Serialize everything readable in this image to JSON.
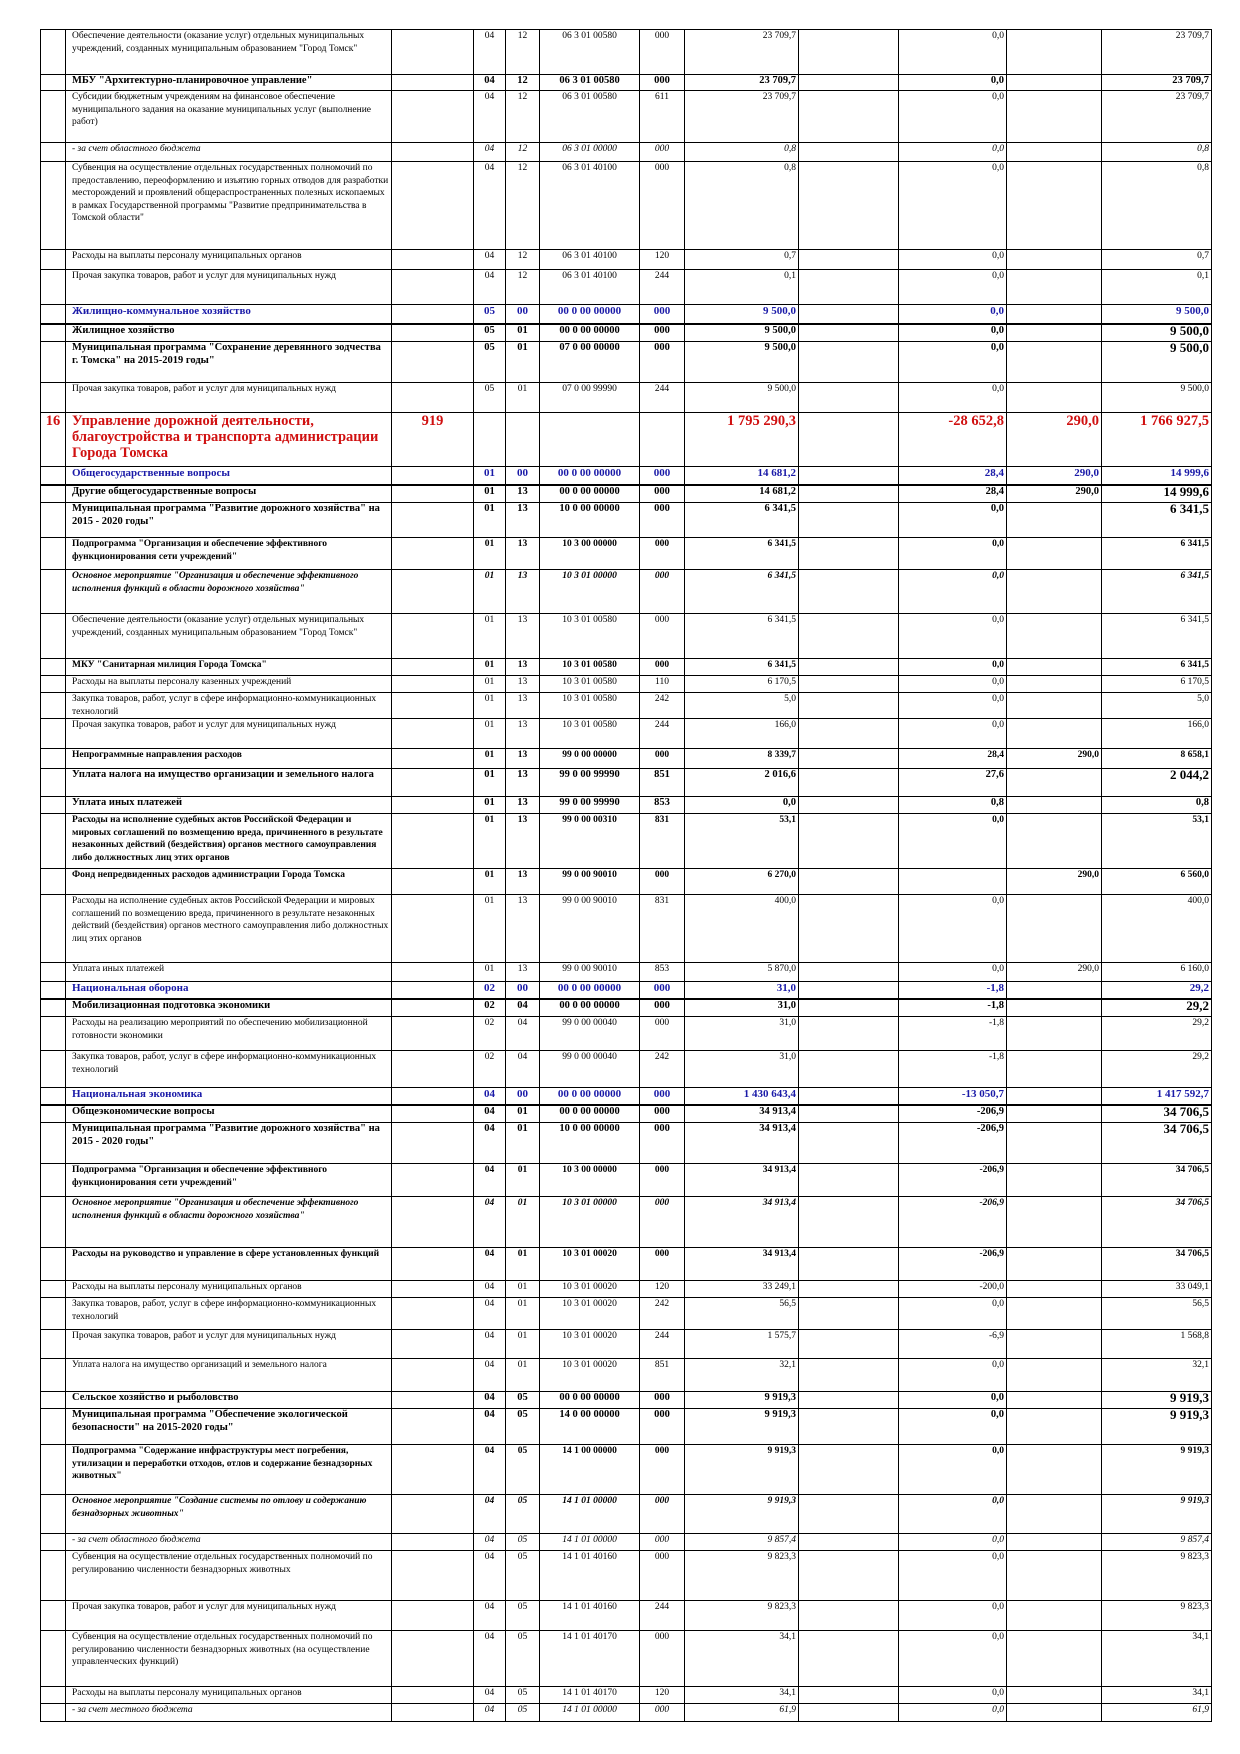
{
  "table": {
    "rows": [
      {
        "style": "normal",
        "cells": [
          null,
          "Обеспечение деятельности (оказание услуг) отдельных муниципальных учреждений, созданных муниципальным образованием \"Город Томск\"",
          null,
          "04",
          "12",
          "06 3 01 00580",
          "000",
          "23 709,7",
          "0,0",
          null,
          "23 709,7"
        ]
      },
      {
        "style": "bold",
        "cells": [
          null,
          "МБУ \"Архитектурно-планировочное управление\"",
          null,
          "04",
          "12",
          "06 3 01 00580",
          "000",
          "23 709,7",
          "0,0",
          null,
          "23 709,7"
        ]
      },
      {
        "style": "normal",
        "cells": [
          null,
          "Субсидии бюджетным учреждениям на финансовое обеспечение муниципального задания на оказание муниципальных услуг (выполнение работ)",
          null,
          "04",
          "12",
          "06 3 01 00580",
          "611",
          "23 709,7",
          "0,0",
          null,
          "23 709,7"
        ]
      },
      {
        "style": "italic",
        "cells": [
          null,
          "- за счет областного бюджета",
          null,
          "04",
          "12",
          "06 3 01 00000",
          "000",
          "0,8",
          "0,0",
          null,
          "0,8"
        ]
      },
      {
        "style": "normal",
        "cells": [
          null,
          "Субвенция на осуществление отдельных государственных полномочий по предоставлению, переоформлению и изъятию горных отводов для разработки месторождений и проявлений общераспространенных полезных ископаемых в рамках Государственной программы \"Развитие предпринимательства в Томской области\"",
          null,
          "04",
          "12",
          "06 3 01 40100",
          "000",
          "0,8",
          "0,0",
          null,
          "0,8"
        ]
      },
      {
        "style": "normal",
        "cells": [
          null,
          "Расходы на выплаты персоналу муниципальных органов",
          null,
          "04",
          "12",
          "06 3 01 40100",
          "120",
          "0,7",
          "0,0",
          null,
          "0,7"
        ]
      },
      {
        "style": "normal",
        "cells": [
          null,
          "Прочая закупка товаров, работ и услуг для муниципальных нужд",
          null,
          "04",
          "12",
          "06 3 01 40100",
          "244",
          "0,1",
          "0,0",
          null,
          "0,1"
        ]
      },
      {
        "style": "blue",
        "cells": [
          null,
          "Жилищно-коммунальное хозяйство",
          null,
          "05",
          "00",
          "00 0 00 00000",
          "000",
          "9 500,0",
          "0,0",
          null,
          "9 500,0"
        ]
      },
      {
        "style": "bold",
        "big_final": true,
        "cells": [
          null,
          "Жилищное хозяйство",
          null,
          "05",
          "01",
          "00 0 00 00000",
          "000",
          "9 500,0",
          "0,0",
          null,
          "9 500,0"
        ]
      },
      {
        "style": "bold",
        "big_final": true,
        "cells": [
          null,
          "Муниципальная программа \"Сохранение деревянного зодчества г. Томска\" на 2015-2019 годы\"",
          null,
          "05",
          "01",
          "07 0 00 00000",
          "000",
          "9 500,0",
          "0,0",
          null,
          "9 500,0"
        ]
      },
      {
        "style": "normal",
        "cells": [
          null,
          "Прочая закупка товаров, работ и услуг для муниципальных нужд",
          null,
          "05",
          "01",
          "07 0 00 99990",
          "244",
          "9 500,0",
          "0,0",
          null,
          "9 500,0"
        ]
      },
      {
        "style": "red",
        "cells": [
          "16",
          "Управление дорожной деятельности, благоустройства и транспорта администрации Города Томска",
          "919",
          null,
          null,
          null,
          null,
          "1 795 290,3",
          "-28 652,8",
          "290,0",
          "1 766 927,5"
        ]
      },
      {
        "style": "blue",
        "cells": [
          null,
          "Общегосударственные вопросы",
          null,
          "01",
          "00",
          "00 0 00 00000",
          "000",
          "14 681,2",
          "28,4",
          "290,0",
          "14 999,6"
        ]
      },
      {
        "style": "bold",
        "big_final": true,
        "cells": [
          null,
          "Другие общегосударственные вопросы",
          null,
          "01",
          "13",
          "00 0 00 00000",
          "000",
          "14 681,2",
          "28,4",
          "290,0",
          "14 999,6"
        ]
      },
      {
        "style": "bold",
        "big_final": true,
        "cells": [
          null,
          "Муниципальная программа \"Развитие дорожного хозяйства\" на 2015 - 2020 годы\"",
          null,
          "01",
          "13",
          "10 0 00 00000",
          "000",
          "6 341,5",
          "0,0",
          null,
          "6 341,5"
        ]
      },
      {
        "style": "bold-small",
        "cells": [
          null,
          "Подпрограмма \"Организация и обеспечение эффективного функционирования сети учреждений\"",
          null,
          "01",
          "13",
          "10 3 00 00000",
          "000",
          "6 341,5",
          "0,0",
          null,
          "6 341,5"
        ]
      },
      {
        "style": "bold-italic",
        "cells": [
          null,
          "Основное мероприятие \"Организация и обеспечение эффективного исполнения функций в области дорожного хозяйства\"",
          null,
          "01",
          "13",
          "10 3 01 00000",
          "000",
          "6 341,5",
          "0,0",
          null,
          "6 341,5"
        ]
      },
      {
        "style": "normal",
        "cells": [
          null,
          "Обеспечение деятельности (оказание услуг) отдельных муниципальных учреждений, созданных муниципальным образованием \"Город Томск\"",
          null,
          "01",
          "13",
          "10 3 01 00580",
          "000",
          "6 341,5",
          "0,0",
          null,
          "6 341,5"
        ]
      },
      {
        "style": "bold-small",
        "cells": [
          null,
          "МКУ \"Санитарная милиция Города Томска\"",
          null,
          "01",
          "13",
          "10 3 01 00580",
          "000",
          "6 341,5",
          "0,0",
          null,
          "6 341,5"
        ]
      },
      {
        "style": "normal",
        "cells": [
          null,
          "Расходы на выплаты персоналу казенных учреждений",
          null,
          "01",
          "13",
          "10 3 01 00580",
          "110",
          "6 170,5",
          "0,0",
          null,
          "6 170,5"
        ]
      },
      {
        "style": "normal",
        "cells": [
          null,
          "Закупка товаров, работ, услуг в сфере информационно-коммуникационных технологий",
          null,
          "01",
          "13",
          "10 3 01 00580",
          "242",
          "5,0",
          "0,0",
          null,
          "5,0"
        ]
      },
      {
        "style": "normal",
        "cells": [
          null,
          "Прочая закупка товаров, работ и услуг для муниципальных нужд",
          null,
          "01",
          "13",
          "10 3 01 00580",
          "244",
          "166,0",
          "0,0",
          null,
          "166,0"
        ]
      },
      {
        "style": "bold-small",
        "cells": [
          null,
          "Непрограммные направления расходов",
          null,
          "01",
          "13",
          "99 0 00 00000",
          "000",
          "8 339,7",
          "28,4",
          "290,0",
          "8 658,1"
        ]
      },
      {
        "style": "bold",
        "big_final": true,
        "cells": [
          null,
          "Уплата налога на имущество организации и земельного налога",
          null,
          "01",
          "13",
          "99 0 00 99990",
          "851",
          "2 016,6",
          "27,6",
          null,
          "2 044,2"
        ]
      },
      {
        "style": "bold",
        "cells": [
          null,
          "Уплата иных платежей",
          null,
          "01",
          "13",
          "99 0 00 99990",
          "853",
          "0,0",
          "0,8",
          null,
          "0,8"
        ]
      },
      {
        "style": "bold-small",
        "cells": [
          null,
          "Расходы на исполнение судебных актов Российской Федерации и мировых соглашений по возмещению вреда, причиненного в результате незаконных действий (бездействия) органов местного самоуправления либо должностных лиц этих органов",
          null,
          "01",
          "13",
          "99 0 00 00310",
          "831",
          "53,1",
          "0,0",
          null,
          "53,1"
        ]
      },
      {
        "style": "bold-small",
        "cells": [
          null,
          "Фонд непредвиденных расходов администрации Города Томска",
          null,
          "01",
          "13",
          "99 0 00 90010",
          "000",
          "6 270,0",
          null,
          "290,0",
          "6 560,0"
        ]
      },
      {
        "style": "normal",
        "cells": [
          null,
          "Расходы на исполнение судебных актов Российской Федерации и мировых соглашений по возмещению вреда, причиненного в результате незаконных действий (бездействия) органов местного самоуправления либо должностных лиц этих органов",
          null,
          "01",
          "13",
          "99 0 00 90010",
          "831",
          "400,0",
          "0,0",
          null,
          "400,0"
        ]
      },
      {
        "style": "normal",
        "cells": [
          null,
          "Уплата иных платежей",
          null,
          "01",
          "13",
          "99 0 00 90010",
          "853",
          "5 870,0",
          "0,0",
          "290,0",
          "6 160,0"
        ]
      },
      {
        "style": "blue",
        "cells": [
          null,
          "Национальная оборона",
          null,
          "02",
          "00",
          "00 0 00 00000",
          "000",
          "31,0",
          "-1,8",
          null,
          "29,2"
        ]
      },
      {
        "style": "bold",
        "big_final": true,
        "cells": [
          null,
          "Мобилизационная подготовка экономики",
          null,
          "02",
          "04",
          "00 0 00 00000",
          "000",
          "31,0",
          "-1,8",
          null,
          "29,2"
        ]
      },
      {
        "style": "normal",
        "cells": [
          null,
          "Расходы на реализацию мероприятий по обеспечению мобилизационной готовности экономики",
          null,
          "02",
          "04",
          "99 0 00 00040",
          "000",
          "31,0",
          "-1,8",
          null,
          "29,2"
        ]
      },
      {
        "style": "normal",
        "cells": [
          null,
          "Закупка товаров, работ, услуг в сфере информационно-коммуникационных технологий",
          null,
          "02",
          "04",
          "99 0 00 00040",
          "242",
          "31,0",
          "-1,8",
          null,
          "29,2"
        ]
      },
      {
        "style": "blue",
        "cells": [
          null,
          "Национальная экономика",
          null,
          "04",
          "00",
          "00 0 00 00000",
          "000",
          "1 430 643,4",
          "-13 050,7",
          null,
          "1 417 592,7"
        ]
      },
      {
        "style": "bold",
        "big_final": true,
        "cells": [
          null,
          "Общеэкономические вопросы",
          null,
          "04",
          "01",
          "00 0 00 00000",
          "000",
          "34 913,4",
          "-206,9",
          null,
          "34 706,5"
        ]
      },
      {
        "style": "bold",
        "big_final": true,
        "cells": [
          null,
          "Муниципальная программа \"Развитие дорожного хозяйства\" на 2015 - 2020 годы\"",
          null,
          "04",
          "01",
          "10 0 00 00000",
          "000",
          "34 913,4",
          "-206,9",
          null,
          "34 706,5"
        ]
      },
      {
        "style": "bold-small",
        "cells": [
          null,
          "Подпрограмма \"Организация и обеспечение эффективного функционирования сети учреждений\"",
          null,
          "04",
          "01",
          "10 3 00 00000",
          "000",
          "34 913,4",
          "-206,9",
          null,
          "34 706,5"
        ]
      },
      {
        "style": "bold-italic",
        "cells": [
          null,
          "Основное мероприятие \"Организация и обеспечение эффективного исполнения функций в области дорожного хозяйства\"",
          null,
          "04",
          "01",
          "10 3 01 00000",
          "000",
          "34 913,4",
          "-206,9",
          null,
          "34 706,5"
        ]
      },
      {
        "style": "bold-small",
        "cells": [
          null,
          "Расходы на руководство и управление в сфере установленных функций",
          null,
          "04",
          "01",
          "10 3 01 00020",
          "000",
          "34 913,4",
          "-206,9",
          null,
          "34 706,5"
        ]
      },
      {
        "style": "normal",
        "cells": [
          null,
          "Расходы на выплаты персоналу муниципальных органов",
          null,
          "04",
          "01",
          "10 3 01 00020",
          "120",
          "33 249,1",
          "-200,0",
          null,
          "33 049,1"
        ]
      },
      {
        "style": "normal",
        "cells": [
          null,
          "Закупка товаров, работ, услуг в сфере информационно-коммуникационных технологий",
          null,
          "04",
          "01",
          "10 3 01 00020",
          "242",
          "56,5",
          "0,0",
          null,
          "56,5"
        ]
      },
      {
        "style": "normal",
        "cells": [
          null,
          "Прочая закупка товаров, работ и услуг для муниципальных нужд",
          null,
          "04",
          "01",
          "10 3 01 00020",
          "244",
          "1 575,7",
          "-6,9",
          null,
          "1 568,8"
        ]
      },
      {
        "style": "normal",
        "cells": [
          null,
          "Уплата налога на имущество организаций и земельного налога",
          null,
          "04",
          "01",
          "10 3 01 00020",
          "851",
          "32,1",
          "0,0",
          null,
          "32,1"
        ]
      },
      {
        "style": "bold",
        "big_final": true,
        "cells": [
          null,
          "Сельское хозяйство и рыболовство",
          null,
          "04",
          "05",
          "00 0 00 00000",
          "000",
          "9 919,3",
          "0,0",
          null,
          "9 919,3"
        ]
      },
      {
        "style": "bold",
        "big_final": true,
        "cells": [
          null,
          "Муниципальная программа \"Обеспечение экологической безопасности\" на 2015-2020 годы\"",
          null,
          "04",
          "05",
          "14 0 00 00000",
          "000",
          "9 919,3",
          "0,0",
          null,
          "9 919,3"
        ]
      },
      {
        "style": "bold-small",
        "cells": [
          null,
          "Подпрограмма \"Содержание инфраструктуры мест погребения, утилизации и переработки отходов, отлов и содержание безнадзорных животных\"",
          null,
          "04",
          "05",
          "14 1 00 00000",
          "000",
          "9 919,3",
          "0,0",
          null,
          "9 919,3"
        ]
      },
      {
        "style": "bold-italic",
        "cells": [
          null,
          "Основное мероприятие \"Создание системы по отлову и содержанию безнадзорных животных\"",
          null,
          "04",
          "05",
          "14 1 01 00000",
          "000",
          "9 919,3",
          "0,0",
          null,
          "9 919,3"
        ]
      },
      {
        "style": "italic",
        "cells": [
          null,
          "- за счет областного бюджета",
          null,
          "04",
          "05",
          "14 1 01 00000",
          "000",
          "9 857,4",
          "0,0",
          null,
          "9 857,4"
        ]
      },
      {
        "style": "normal",
        "cells": [
          null,
          "Субвенция на осуществление отдельных государственных полномочий по регулированию численности безнадзорных животных",
          null,
          "04",
          "05",
          "14 1 01 40160",
          "000",
          "9 823,3",
          "0,0",
          null,
          "9 823,3"
        ]
      },
      {
        "style": "normal",
        "cells": [
          null,
          "Прочая закупка товаров, работ и услуг для муниципальных нужд",
          null,
          "04",
          "05",
          "14 1 01 40160",
          "244",
          "9 823,3",
          "0,0",
          null,
          "9 823,3"
        ]
      },
      {
        "style": "normal",
        "cells": [
          null,
          "Субвенция на осуществление отдельных государственных полномочий по регулированию численности безнадзорных животных (на осуществление управленческих функций)",
          null,
          "04",
          "05",
          "14 1 01 40170",
          "000",
          "34,1",
          "0,0",
          null,
          "34,1"
        ]
      },
      {
        "style": "normal",
        "cells": [
          null,
          "Расходы на выплаты персоналу муниципальных органов",
          null,
          "04",
          "05",
          "14 1 01 40170",
          "120",
          "34,1",
          "0,0",
          null,
          "34,1"
        ]
      },
      {
        "style": "italic",
        "cells": [
          null,
          "- за счет местного бюджета",
          null,
          "04",
          "05",
          "14 1 01 00000",
          "000",
          "61,9",
          "0,0",
          null,
          "61,9"
        ]
      }
    ]
  }
}
